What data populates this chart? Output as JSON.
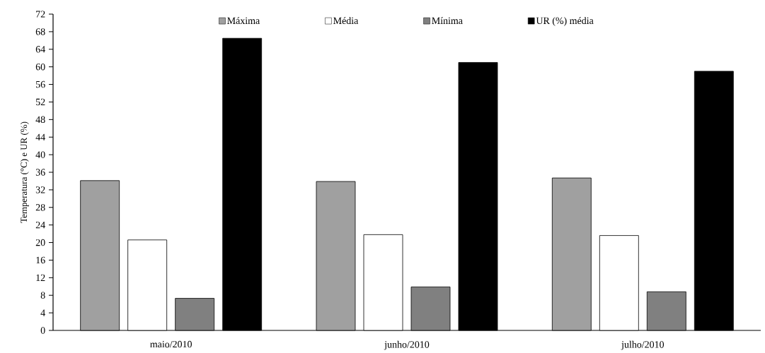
{
  "chart_data": {
    "type": "bar",
    "ylabel": "Temperatura (°C) e UR (%)",
    "categories": [
      "maio/2010",
      "junho/2010",
      "julho/2010"
    ],
    "series": [
      {
        "name": "Máxima",
        "color": "#a0a0a0",
        "values": [
          34.1,
          33.9,
          34.7
        ]
      },
      {
        "name": "Média",
        "color": "#ffffff",
        "values": [
          20.6,
          21.8,
          21.6
        ]
      },
      {
        "name": "Mínima",
        "color": "#808080",
        "values": [
          7.3,
          9.9,
          8.8
        ]
      },
      {
        "name": "UR (%) média",
        "color": "#000000",
        "values": [
          66.5,
          61.0,
          59.0
        ]
      }
    ],
    "ylim": [
      0,
      72
    ],
    "yticks": [
      0,
      4,
      8,
      12,
      16,
      20,
      24,
      28,
      32,
      36,
      40,
      44,
      48,
      52,
      56,
      60,
      64,
      68,
      72
    ],
    "grid": false,
    "legend": "top"
  }
}
